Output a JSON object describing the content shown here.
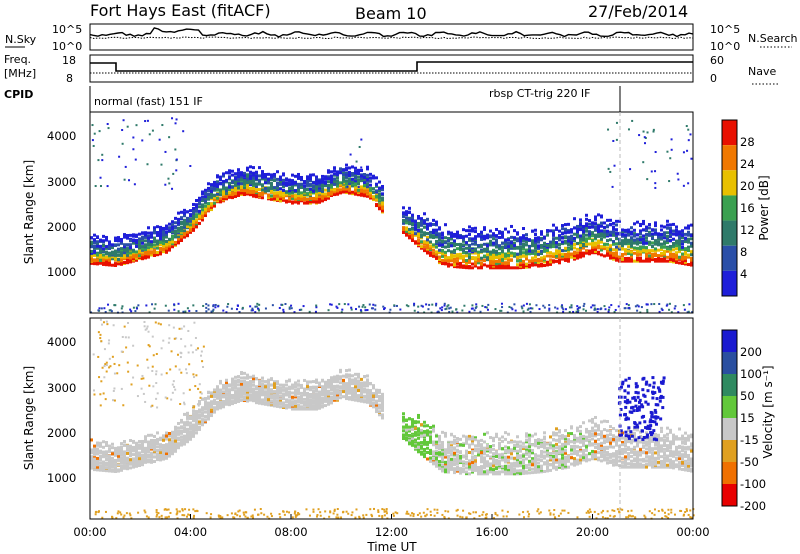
{
  "header": {
    "title": "Fort Hays East (fitACF)",
    "beam": "Beam 10",
    "date": "27/Feb/2014"
  },
  "top_strip": {
    "left_label": "N.Sky",
    "right_label": "N.Search",
    "left_ticks": [
      "10^5",
      "10^0"
    ],
    "right_ticks": [
      "10^5",
      "10^0"
    ]
  },
  "freq_strip": {
    "left_label_1": "Freq.",
    "left_label_2": "[MHz]",
    "left_ticks": [
      "18",
      "8"
    ],
    "right_ticks": [
      "60",
      "0"
    ],
    "right_label": "Nave"
  },
  "cpid_strip": {
    "label": "CPID",
    "mode_1": "normal (fast) 151 IF",
    "mode_2": "rbsp CT-trig 220 IF"
  },
  "chart_data": [
    {
      "type": "heatmap",
      "title": "",
      "ylabel": "Slant Range [km]",
      "xlabel": "",
      "ylim": [
        0,
        4500
      ],
      "yticks": [
        "1000",
        "2000",
        "3000",
        "4000"
      ],
      "colorbar_label": "Power [dB]",
      "colorbar_ticks": [
        "4",
        "8",
        "12",
        "16",
        "20",
        "24",
        "28"
      ],
      "colors": [
        "#1f1fd9",
        "#2a4fa8",
        "#2f7a6a",
        "#3aa050",
        "#e8c000",
        "#f07800",
        "#e81000"
      ],
      "bands": [
        {
          "name": "lower",
          "x": [
            0,
            1,
            2,
            3,
            4,
            5,
            6,
            7,
            8,
            9,
            10,
            11,
            12,
            13,
            14,
            15,
            16,
            17,
            18,
            19,
            20,
            21,
            22,
            23,
            24
          ],
          "y": [
            1100,
            1050,
            1200,
            1350,
            1800,
            2450,
            2650,
            2550,
            2450,
            2450,
            2700,
            2600,
            null,
            1500,
            1050,
            1000,
            1000,
            1000,
            1050,
            1150,
            1350,
            1150,
            1150,
            1150,
            1050
          ]
        }
      ]
    },
    {
      "type": "heatmap",
      "title": "",
      "ylabel": "Slant Range [km]",
      "xlabel": "Time UT",
      "ylim": [
        0,
        4500
      ],
      "yticks": [
        "1000",
        "2000",
        "3000",
        "4000"
      ],
      "xticks": [
        "00:00",
        "04:00",
        "08:00",
        "12:00",
        "16:00",
        "20:00",
        "00:00"
      ],
      "colorbar_label": "Velocity [m s⁻¹]",
      "colorbar_ticks": [
        "200",
        "100",
        "50",
        "15",
        "-15",
        "-50",
        "-100",
        "-200"
      ],
      "colors": [
        "#1a1ad0",
        "#2a4fa0",
        "#2f8a60",
        "#62c83a",
        "#c8c8c8",
        "#e0a020",
        "#f07000",
        "#e80000"
      ]
    }
  ]
}
